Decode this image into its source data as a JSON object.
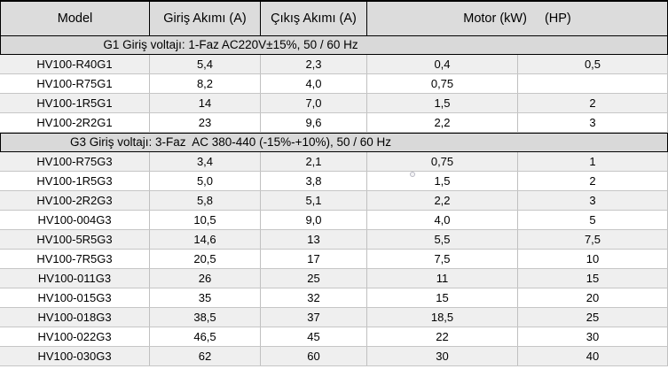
{
  "table": {
    "columns": [
      "Model",
      "Giriş Akımı (A)",
      "Çıkış Akımı (A)"
    ],
    "motor_kw_label": "Motor (kW)",
    "hp_label": "(HP)",
    "sections": [
      {
        "title": "G1 Giriş voltajı: 1-Faz AC220V±15%, 50 / 60 Hz",
        "rows": [
          [
            "HV100-R40G1",
            "5,4",
            "2,3",
            "0,4",
            "0,5"
          ],
          [
            "HV100-R75G1",
            "8,2",
            "4,0",
            "0,75",
            ""
          ],
          [
            "HV100-1R5G1",
            "14",
            "7,0",
            "1,5",
            "2"
          ],
          [
            "HV100-2R2G1",
            "23",
            "9,6",
            "2,2",
            "3"
          ]
        ]
      },
      {
        "title": "G3 Giriş voltajı: 3-Faz  AC 380-440 (-15%-+10%), 50 / 60 Hz",
        "rows": [
          [
            "HV100-R75G3",
            "3,4",
            "2,1",
            "0,75",
            "1"
          ],
          [
            "HV100-1R5G3",
            "5,0",
            "3,8",
            "1,5",
            "2"
          ],
          [
            "HV100-2R2G3",
            "5,8",
            "5,1",
            "2,2",
            "3"
          ],
          [
            "HV100-004G3",
            "10,5",
            "9,0",
            "4,0",
            "5"
          ],
          [
            "HV100-5R5G3",
            "14,6",
            "13",
            "5,5",
            "7,5"
          ],
          [
            "HV100-7R5G3",
            "20,5",
            "17",
            "7,5",
            "10"
          ],
          [
            "HV100-011G3",
            "26",
            "25",
            "11",
            "15"
          ],
          [
            "HV100-015G3",
            "35",
            "32",
            "15",
            "20"
          ],
          [
            "HV100-018G3",
            "38,5",
            "37",
            "18,5",
            "25"
          ],
          [
            "HV100-022G3",
            "46,5",
            "45",
            "22",
            "30"
          ],
          [
            "HV100-030G3",
            "62",
            "60",
            "30",
            "40"
          ]
        ]
      }
    ],
    "colors": {
      "header_bg": "#dcdcdc",
      "section_bg": "#d9d9d9",
      "row_odd_bg": "#efefef",
      "row_even_bg": "#ffffff",
      "grid_line": "#c0c0c0",
      "border": "#000000"
    }
  }
}
